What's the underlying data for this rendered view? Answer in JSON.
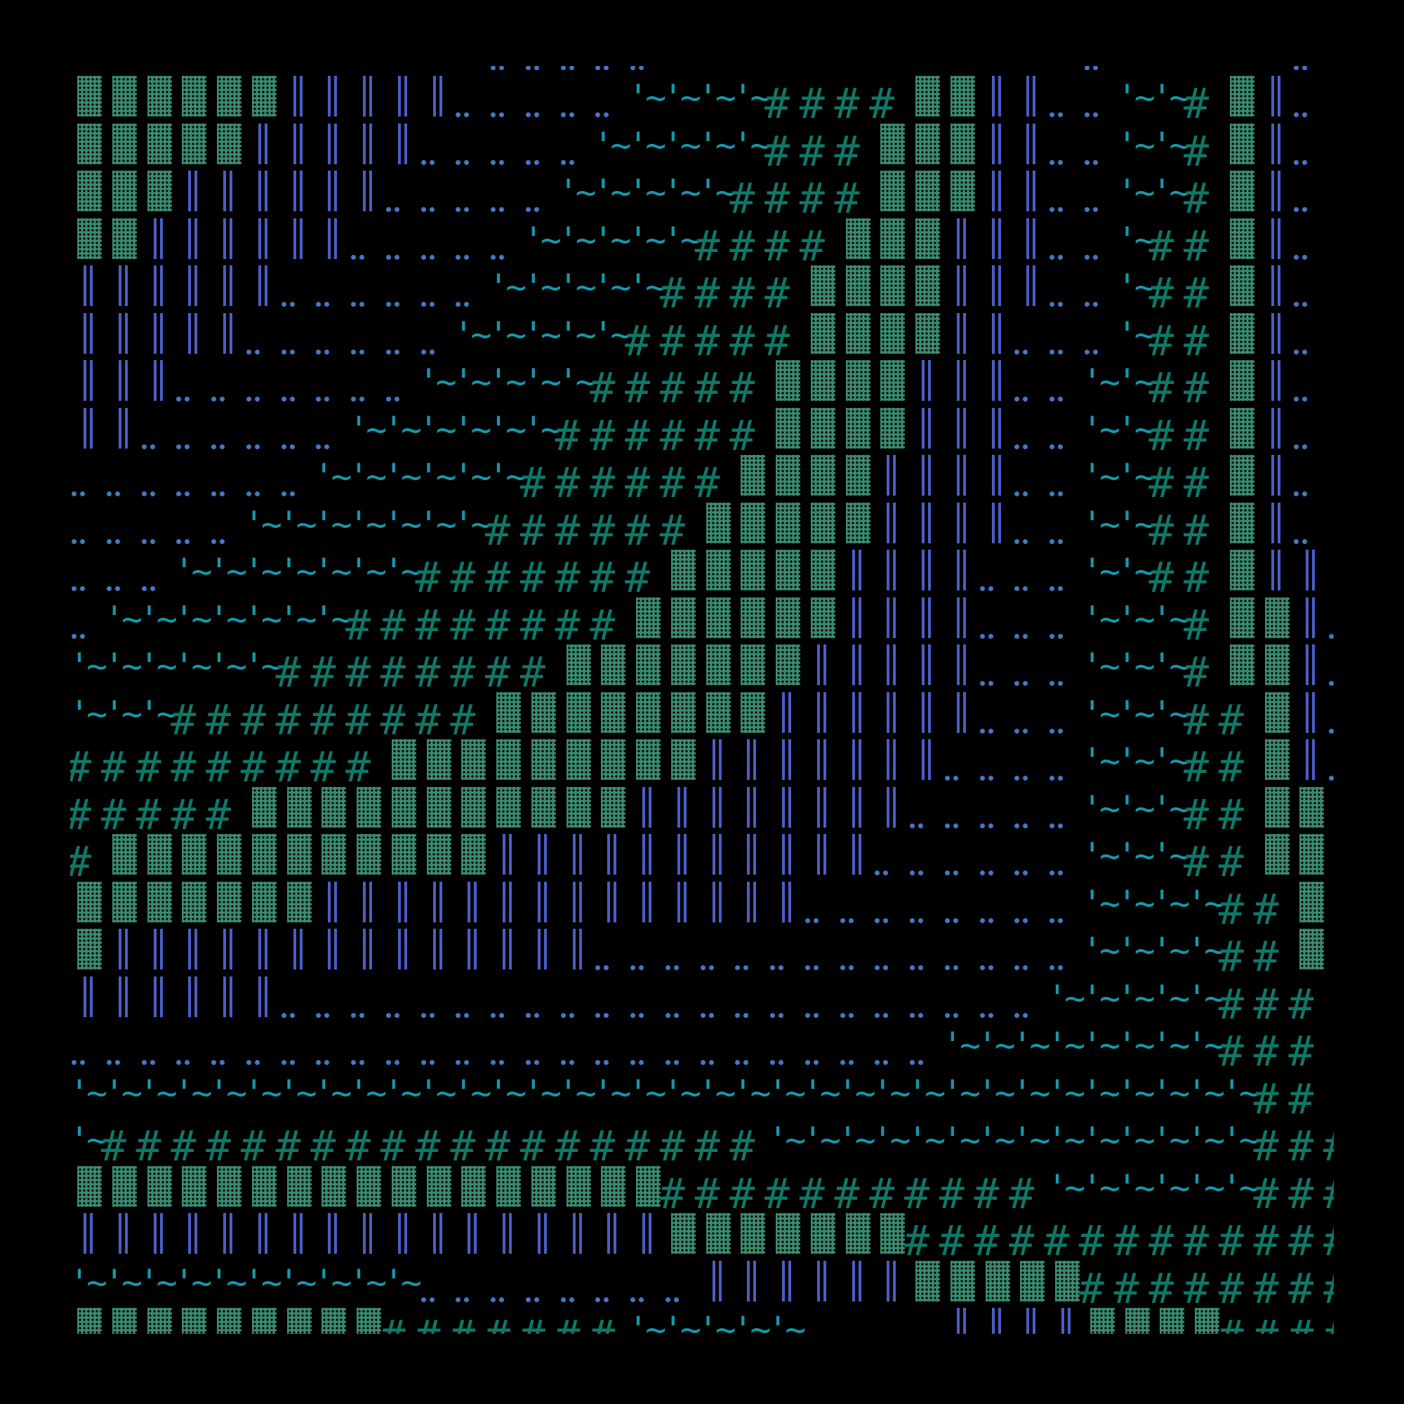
{
  "art": {
    "glyph_key": {
      "▓": "block",
      "║": "double-bar",
      "‥": "dots",
      "~": "tilde",
      "#": "hash"
    },
    "rows": [
      "            ‥‥‥‥‥            ‥     ‥ ",
      "▓▓▓▓▓▓║║║║║‥‥‥‥‥~~~~####▓▓║║‥‥~~#▓║‥~",
      "▓▓▓▓▓║║║║║‥‥‥‥‥~~~~~###▓▓▓║║‥‥~~#▓║‥~",
      "▓▓▓║║║║║║‥‥‥‥‥~~~~~####▓▓▓║║‥‥~~#▓║‥~",
      "▓▓║║║║║║‥‥‥‥‥~~~~~####▓▓▓║║║‥‥~##▓║‥~",
      "║║║║║║‥‥‥‥‥‥~~~~~####▓▓▓▓║║║‥‥~##▓║‥~",
      "║║║║║‥‥‥‥‥‥~~~~~#####▓▓▓▓║║‥‥‥~##▓║‥~",
      "║║║‥‥‥‥‥‥‥~~~~~#####▓▓▓▓║║║‥‥~~##▓║‥~",
      "║║‥‥‥‥‥‥~~~~~~######▓▓▓▓║║║‥‥~~##▓║‥~",
      "‥‥‥‥‥‥‥~~~~~~######▓▓▓▓║║║║‥‥~~##▓║‥~",
      "‥‥‥‥‥~~~~~~~######▓▓▓▓▓║║║║‥‥~~##▓║‥~",
      "‥‥‥~~~~~~~#######▓▓▓▓▓║║║║‥‥‥~~##▓║║~",
      "‥~~~~~~~########▓▓▓▓▓▓║║║║‥‥‥~~~#▓▓║‥",
      "~~~~~~########▓▓▓▓▓▓▓║║║║║‥‥‥~~~#▓▓║‥",
      "~~~#########▓▓▓▓▓▓▓▓║║║║║║‥‥‥~~~##▓║‥",
      "#########▓▓▓▓▓▓▓▓▓║║║║║║║‥‥‥‥~~~##▓║‥",
      "#####▓▓▓▓▓▓▓▓▓▓▓║║║║║║║║‥‥‥‥‥~~~##▓▓ ",
      "#▓▓▓▓▓▓▓▓▓▓▓║║║║║║║║║║║‥‥‥‥‥‥~~~##▓▓ ",
      "▓▓▓▓▓▓▓║║║║║║║║║║║║║║‥‥‥‥‥‥‥‥~~~~##▓ ",
      "▓║║║║║║║║║║║║║║‥‥‥‥‥‥‥‥‥‥‥‥‥‥~~~~##▓▓",
      "║║║║║║‥‥‥‥‥‥‥‥‥‥‥‥‥‥‥‥‥‥‥‥‥‥~~~~~###▓",
      "‥‥‥‥‥‥‥‥‥‥‥‥‥‥‥‥‥‥‥‥‥‥‥‥‥~~~~~~~~###▓",
      "~~~~~~~~~~~~~~~~~~~~~~~~~~~~~~~~~~##▓",
      "~###################~~~~~~~~~~~~~~###",
      "▓▓▓▓▓▓▓▓▓▓▓▓▓▓▓▓▓###########~~~~~~###",
      "║║║║║║║║║║║║║║║║║▓▓▓▓▓▓▓#############",
      "~~~~~~~~~~‥‥‥‥‥‥‥‥║║║║║║▓▓▓▓▓########",
      "▓▓▓▓▓▓▓▓▓#######~~~~~    ║║║║▓▓▓▓####"
    ]
  },
  "colors": {
    "background": "#000000",
    "block": "#3b8a6f",
    "double_bar": "#4b5ec6",
    "dots": "#4478c4",
    "tilde": "#1698a9",
    "hash": "#0f7868"
  }
}
